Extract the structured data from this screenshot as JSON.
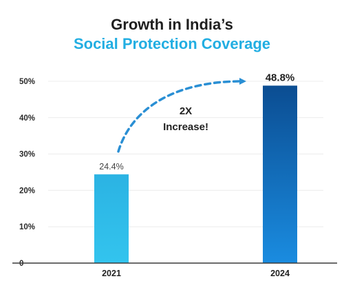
{
  "chart_data": {
    "type": "bar",
    "title": "Growth in India’s",
    "subtitle": "Social Protection Coverage",
    "categories": [
      "2021",
      "2024"
    ],
    "values": [
      24.4,
      48.8
    ],
    "value_labels": [
      "24.4%",
      "48.8%"
    ],
    "y_ticks": [
      "0",
      "10%",
      "20%",
      "30%",
      "40%",
      "50%"
    ],
    "y_tick_values": [
      0,
      10,
      20,
      30,
      40,
      50
    ],
    "ylim": [
      0,
      50
    ],
    "grid": true,
    "annotation": {
      "line1": "2X",
      "line2": "Increase!"
    }
  },
  "colors": {
    "bar_2021_top": "#2bb3e3",
    "bar_2021_bottom": "#33c4ee",
    "bar_2024_top": "#0b4d92",
    "bar_2024_bottom": "#1a8ce0",
    "arrow": "#2a8fd4",
    "title_accent": "#22aee2"
  }
}
